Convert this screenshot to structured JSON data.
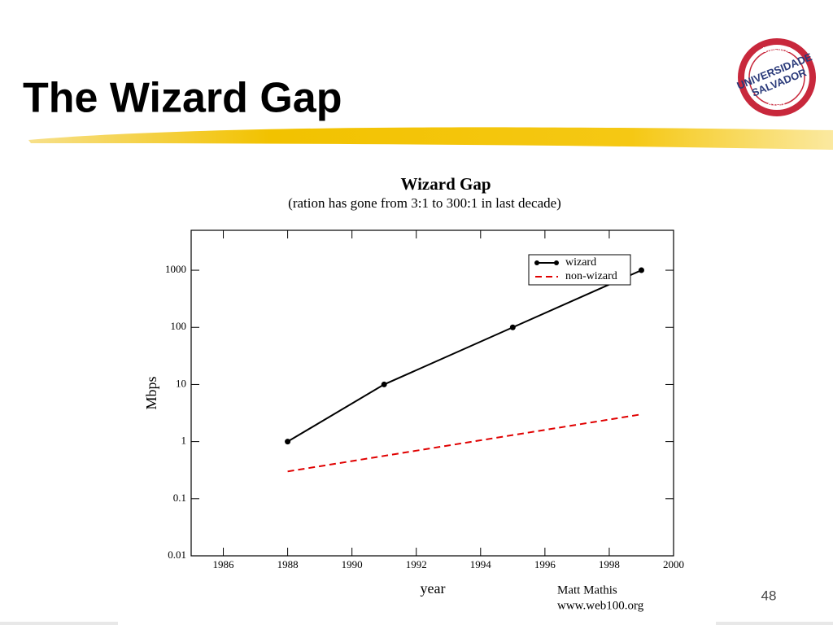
{
  "slide": {
    "title": "The Wizard Gap",
    "page_number": "48",
    "credit_name": "Matt Mathis",
    "credit_url": "www.web100.org",
    "logo": {
      "top": "UNIFACS",
      "main1": "UNIVERSIDADE",
      "main2": "SALVADOR",
      "bottom": "BAHIA"
    }
  },
  "chart_data": {
    "type": "line",
    "title": "Wizard Gap",
    "subtitle": "(ration has gone from 3:1 to 300:1 in last decade)",
    "xlabel": "year",
    "ylabel": "Mbps",
    "log_y": true,
    "legend": "upper right",
    "xlim": [
      1985,
      2000
    ],
    "xticks": [
      1986,
      1988,
      1990,
      1992,
      1994,
      1996,
      1998,
      2000
    ],
    "ylim": [
      0.01,
      5000
    ],
    "yticks": [
      0.01,
      0.1,
      1,
      10,
      100,
      1000
    ],
    "series": [
      {
        "name": "wizard",
        "color": "#000000",
        "style": "solid",
        "markers": true,
        "x": [
          1988,
          1991,
          1995,
          1999
        ],
        "values": [
          1,
          10,
          100,
          1000
        ]
      },
      {
        "name": "non-wizard",
        "color": "#e00000",
        "style": "dashed",
        "markers": false,
        "x": [
          1988,
          1999
        ],
        "values": [
          0.3,
          3
        ]
      }
    ]
  }
}
